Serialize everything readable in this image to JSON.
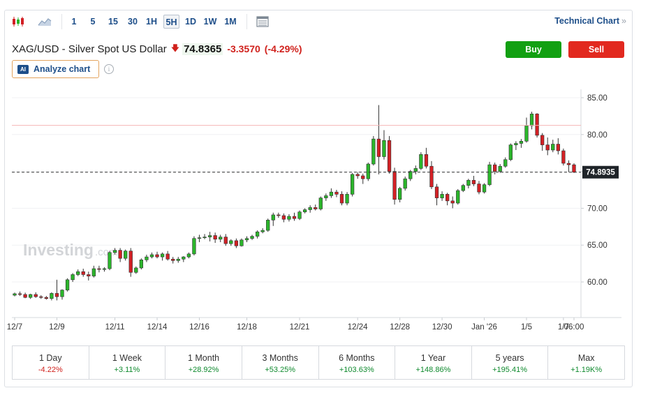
{
  "toolbar": {
    "intervals": [
      "1",
      "5",
      "15",
      "30",
      "1H",
      "5H",
      "1D",
      "1W",
      "1M"
    ],
    "active_interval": "5H",
    "technical_link": "Technical Chart",
    "technical_chevron": "»"
  },
  "header": {
    "instrument": "XAG/USD - Silver Spot US Dollar",
    "price": "74.8365",
    "change": "-3.3570",
    "change_pct": "(-4.29%)",
    "buy_label": "Buy",
    "sell_label": "Sell",
    "analyze_label": "Analyze chart",
    "ai_badge": "AI",
    "info_glyph": "i"
  },
  "watermark": {
    "brand": "Investing",
    "suffix": ".com"
  },
  "chart_data": {
    "type": "candlestick",
    "y_ticks": [
      "85.00",
      "80.00",
      "75.00",
      "70.00",
      "65.00",
      "60.00"
    ],
    "ylim": [
      56.5,
      86.0
    ],
    "x_ticks": [
      "12/7",
      "12/9",
      "12/11",
      "12/14",
      "12/16",
      "12/18",
      "12/21",
      "12/24",
      "12/28",
      "12/30",
      "Jan '26",
      "1/5",
      "1/7",
      "06:00"
    ],
    "current_price_label": "74.8935",
    "current_price": 74.8935,
    "reference_line": 81.25,
    "colors": {
      "up": "#2bb52b",
      "down": "#d32025",
      "ref_line": "#f4b4b4"
    },
    "candles": [
      {
        "o": 58.2,
        "h": 58.55,
        "l": 58.05,
        "c": 58.4
      },
      {
        "o": 58.4,
        "h": 58.7,
        "l": 58.1,
        "c": 58.3
      },
      {
        "o": 58.3,
        "h": 58.55,
        "l": 57.8,
        "c": 57.9
      },
      {
        "o": 57.9,
        "h": 58.4,
        "l": 57.7,
        "c": 58.3
      },
      {
        "o": 58.3,
        "h": 58.6,
        "l": 57.85,
        "c": 58.0
      },
      {
        "o": 58.0,
        "h": 58.2,
        "l": 57.7,
        "c": 57.9
      },
      {
        "o": 57.9,
        "h": 58.1,
        "l": 57.6,
        "c": 57.75
      },
      {
        "o": 57.75,
        "h": 58.6,
        "l": 57.5,
        "c": 58.45
      },
      {
        "o": 58.45,
        "h": 60.3,
        "l": 57.5,
        "c": 58.0
      },
      {
        "o": 58.0,
        "h": 59.0,
        "l": 57.6,
        "c": 58.9
      },
      {
        "o": 58.9,
        "h": 60.5,
        "l": 58.7,
        "c": 60.3
      },
      {
        "o": 60.3,
        "h": 61.2,
        "l": 60.0,
        "c": 61.0
      },
      {
        "o": 61.0,
        "h": 61.7,
        "l": 60.8,
        "c": 61.4
      },
      {
        "o": 61.4,
        "h": 61.8,
        "l": 60.7,
        "c": 61.0
      },
      {
        "o": 61.0,
        "h": 61.4,
        "l": 60.2,
        "c": 60.8
      },
      {
        "o": 60.8,
        "h": 62.2,
        "l": 60.6,
        "c": 61.8
      },
      {
        "o": 61.8,
        "h": 62.2,
        "l": 61.3,
        "c": 61.7
      },
      {
        "o": 61.7,
        "h": 62.0,
        "l": 61.4,
        "c": 61.8
      },
      {
        "o": 61.8,
        "h": 64.2,
        "l": 61.6,
        "c": 64.0
      },
      {
        "o": 64.0,
        "h": 64.6,
        "l": 63.7,
        "c": 64.3
      },
      {
        "o": 64.3,
        "h": 64.6,
        "l": 62.7,
        "c": 63.2
      },
      {
        "o": 63.2,
        "h": 64.4,
        "l": 62.9,
        "c": 64.2
      },
      {
        "o": 64.2,
        "h": 64.6,
        "l": 60.7,
        "c": 61.3
      },
      {
        "o": 61.3,
        "h": 62.1,
        "l": 61.1,
        "c": 61.9
      },
      {
        "o": 61.9,
        "h": 63.2,
        "l": 61.7,
        "c": 63.0
      },
      {
        "o": 63.0,
        "h": 63.7,
        "l": 62.7,
        "c": 63.4
      },
      {
        "o": 63.4,
        "h": 64.0,
        "l": 63.2,
        "c": 63.7
      },
      {
        "o": 63.7,
        "h": 64.1,
        "l": 63.2,
        "c": 63.4
      },
      {
        "o": 63.4,
        "h": 64.0,
        "l": 62.9,
        "c": 63.8
      },
      {
        "o": 63.8,
        "h": 64.2,
        "l": 62.9,
        "c": 63.1
      },
      {
        "o": 63.1,
        "h": 63.4,
        "l": 62.5,
        "c": 62.9
      },
      {
        "o": 62.9,
        "h": 63.4,
        "l": 62.6,
        "c": 63.1
      },
      {
        "o": 63.1,
        "h": 63.5,
        "l": 62.7,
        "c": 63.4
      },
      {
        "o": 63.4,
        "h": 64.0,
        "l": 63.2,
        "c": 63.8
      },
      {
        "o": 63.8,
        "h": 66.2,
        "l": 63.6,
        "c": 65.9
      },
      {
        "o": 65.9,
        "h": 66.4,
        "l": 65.4,
        "c": 66.0
      },
      {
        "o": 66.0,
        "h": 66.5,
        "l": 65.8,
        "c": 66.1
      },
      {
        "o": 66.1,
        "h": 66.8,
        "l": 65.5,
        "c": 66.3
      },
      {
        "o": 66.3,
        "h": 66.7,
        "l": 65.3,
        "c": 65.8
      },
      {
        "o": 65.8,
        "h": 66.4,
        "l": 65.4,
        "c": 66.1
      },
      {
        "o": 66.1,
        "h": 66.5,
        "l": 64.9,
        "c": 65.2
      },
      {
        "o": 65.2,
        "h": 65.8,
        "l": 64.9,
        "c": 65.6
      },
      {
        "o": 65.6,
        "h": 65.9,
        "l": 64.6,
        "c": 64.9
      },
      {
        "o": 64.9,
        "h": 65.9,
        "l": 64.8,
        "c": 65.7
      },
      {
        "o": 65.7,
        "h": 66.2,
        "l": 65.4,
        "c": 65.9
      },
      {
        "o": 65.9,
        "h": 66.4,
        "l": 65.7,
        "c": 66.2
      },
      {
        "o": 66.2,
        "h": 67.0,
        "l": 65.9,
        "c": 66.8
      },
      {
        "o": 66.8,
        "h": 67.3,
        "l": 66.6,
        "c": 67.0
      },
      {
        "o": 67.0,
        "h": 68.6,
        "l": 66.8,
        "c": 68.4
      },
      {
        "o": 68.4,
        "h": 69.4,
        "l": 67.6,
        "c": 69.1
      },
      {
        "o": 69.1,
        "h": 69.4,
        "l": 68.7,
        "c": 69.0
      },
      {
        "o": 69.0,
        "h": 69.3,
        "l": 68.1,
        "c": 68.5
      },
      {
        "o": 68.5,
        "h": 69.2,
        "l": 68.2,
        "c": 68.9
      },
      {
        "o": 68.9,
        "h": 69.4,
        "l": 68.3,
        "c": 68.6
      },
      {
        "o": 68.6,
        "h": 69.7,
        "l": 68.4,
        "c": 69.5
      },
      {
        "o": 69.5,
        "h": 70.0,
        "l": 69.3,
        "c": 69.8
      },
      {
        "o": 69.8,
        "h": 70.4,
        "l": 69.4,
        "c": 70.1
      },
      {
        "o": 70.1,
        "h": 70.5,
        "l": 69.7,
        "c": 69.9
      },
      {
        "o": 69.9,
        "h": 71.6,
        "l": 69.7,
        "c": 71.4
      },
      {
        "o": 71.4,
        "h": 72.0,
        "l": 71.0,
        "c": 71.7
      },
      {
        "o": 71.7,
        "h": 72.7,
        "l": 71.4,
        "c": 72.2
      },
      {
        "o": 72.2,
        "h": 72.5,
        "l": 71.5,
        "c": 71.9
      },
      {
        "o": 71.9,
        "h": 72.3,
        "l": 70.4,
        "c": 70.7
      },
      {
        "o": 70.7,
        "h": 72.2,
        "l": 70.4,
        "c": 71.9
      },
      {
        "o": 71.9,
        "h": 74.8,
        "l": 71.6,
        "c": 74.6
      },
      {
        "o": 74.6,
        "h": 74.9,
        "l": 74.0,
        "c": 74.4
      },
      {
        "o": 74.4,
        "h": 74.7,
        "l": 73.3,
        "c": 74.0
      },
      {
        "o": 74.0,
        "h": 76.2,
        "l": 73.7,
        "c": 76.0
      },
      {
        "o": 76.0,
        "h": 79.8,
        "l": 75.8,
        "c": 79.4
      },
      {
        "o": 79.4,
        "h": 84.0,
        "l": 74.6,
        "c": 77.0
      },
      {
        "o": 77.0,
        "h": 80.6,
        "l": 76.6,
        "c": 79.2
      },
      {
        "o": 79.2,
        "h": 79.8,
        "l": 74.7,
        "c": 75.0
      },
      {
        "o": 75.0,
        "h": 75.5,
        "l": 70.5,
        "c": 71.2
      },
      {
        "o": 71.2,
        "h": 72.9,
        "l": 70.8,
        "c": 72.7
      },
      {
        "o": 72.7,
        "h": 74.3,
        "l": 72.4,
        "c": 74.0
      },
      {
        "o": 74.0,
        "h": 75.2,
        "l": 73.7,
        "c": 75.0
      },
      {
        "o": 75.0,
        "h": 75.8,
        "l": 74.6,
        "c": 75.4
      },
      {
        "o": 75.4,
        "h": 77.6,
        "l": 75.2,
        "c": 77.3
      },
      {
        "o": 77.3,
        "h": 78.2,
        "l": 75.4,
        "c": 75.7
      },
      {
        "o": 75.7,
        "h": 76.4,
        "l": 72.6,
        "c": 72.9
      },
      {
        "o": 72.9,
        "h": 73.3,
        "l": 70.4,
        "c": 71.4
      },
      {
        "o": 71.4,
        "h": 72.3,
        "l": 71.0,
        "c": 71.9
      },
      {
        "o": 71.9,
        "h": 72.1,
        "l": 70.4,
        "c": 71.0
      },
      {
        "o": 71.0,
        "h": 71.6,
        "l": 70.0,
        "c": 70.7
      },
      {
        "o": 70.7,
        "h": 72.6,
        "l": 70.5,
        "c": 72.4
      },
      {
        "o": 72.4,
        "h": 73.3,
        "l": 72.2,
        "c": 73.1
      },
      {
        "o": 73.1,
        "h": 74.0,
        "l": 72.7,
        "c": 73.8
      },
      {
        "o": 73.8,
        "h": 74.4,
        "l": 73.0,
        "c": 73.3
      },
      {
        "o": 73.3,
        "h": 73.7,
        "l": 71.9,
        "c": 72.2
      },
      {
        "o": 72.2,
        "h": 73.4,
        "l": 72.0,
        "c": 73.2
      },
      {
        "o": 73.2,
        "h": 76.3,
        "l": 73.0,
        "c": 75.9
      },
      {
        "o": 75.9,
        "h": 76.2,
        "l": 74.6,
        "c": 75.0
      },
      {
        "o": 75.0,
        "h": 76.0,
        "l": 74.8,
        "c": 75.7
      },
      {
        "o": 75.7,
        "h": 76.9,
        "l": 75.5,
        "c": 76.6
      },
      {
        "o": 76.6,
        "h": 78.8,
        "l": 76.4,
        "c": 78.6
      },
      {
        "o": 78.6,
        "h": 79.1,
        "l": 77.9,
        "c": 78.8
      },
      {
        "o": 78.8,
        "h": 79.4,
        "l": 78.2,
        "c": 79.1
      },
      {
        "o": 79.1,
        "h": 82.3,
        "l": 78.9,
        "c": 81.2
      },
      {
        "o": 81.2,
        "h": 83.1,
        "l": 80.7,
        "c": 82.8
      },
      {
        "o": 82.8,
        "h": 82.9,
        "l": 79.6,
        "c": 79.9
      },
      {
        "o": 79.9,
        "h": 80.2,
        "l": 77.8,
        "c": 78.6
      },
      {
        "o": 78.6,
        "h": 79.6,
        "l": 77.2,
        "c": 77.9
      },
      {
        "o": 77.9,
        "h": 79.3,
        "l": 77.6,
        "c": 78.7
      },
      {
        "o": 78.7,
        "h": 79.5,
        "l": 77.3,
        "c": 77.8
      },
      {
        "o": 77.8,
        "h": 78.1,
        "l": 75.8,
        "c": 76.1
      },
      {
        "o": 76.1,
        "h": 76.5,
        "l": 74.9,
        "c": 75.9
      },
      {
        "o": 75.9,
        "h": 76.1,
        "l": 74.8,
        "c": 74.89
      }
    ]
  },
  "performance": [
    {
      "label": "1 Day",
      "value": "-4.22%",
      "dir": "neg"
    },
    {
      "label": "1 Week",
      "value": "+3.11%",
      "dir": "pos"
    },
    {
      "label": "1 Month",
      "value": "+28.92%",
      "dir": "pos"
    },
    {
      "label": "3 Months",
      "value": "+53.25%",
      "dir": "pos"
    },
    {
      "label": "6 Months",
      "value": "+103.63%",
      "dir": "pos"
    },
    {
      "label": "1 Year",
      "value": "+148.86%",
      "dir": "pos"
    },
    {
      "label": "5 years",
      "value": "+195.41%",
      "dir": "pos"
    },
    {
      "label": "Max",
      "value": "+1.19K%",
      "dir": "pos"
    }
  ]
}
